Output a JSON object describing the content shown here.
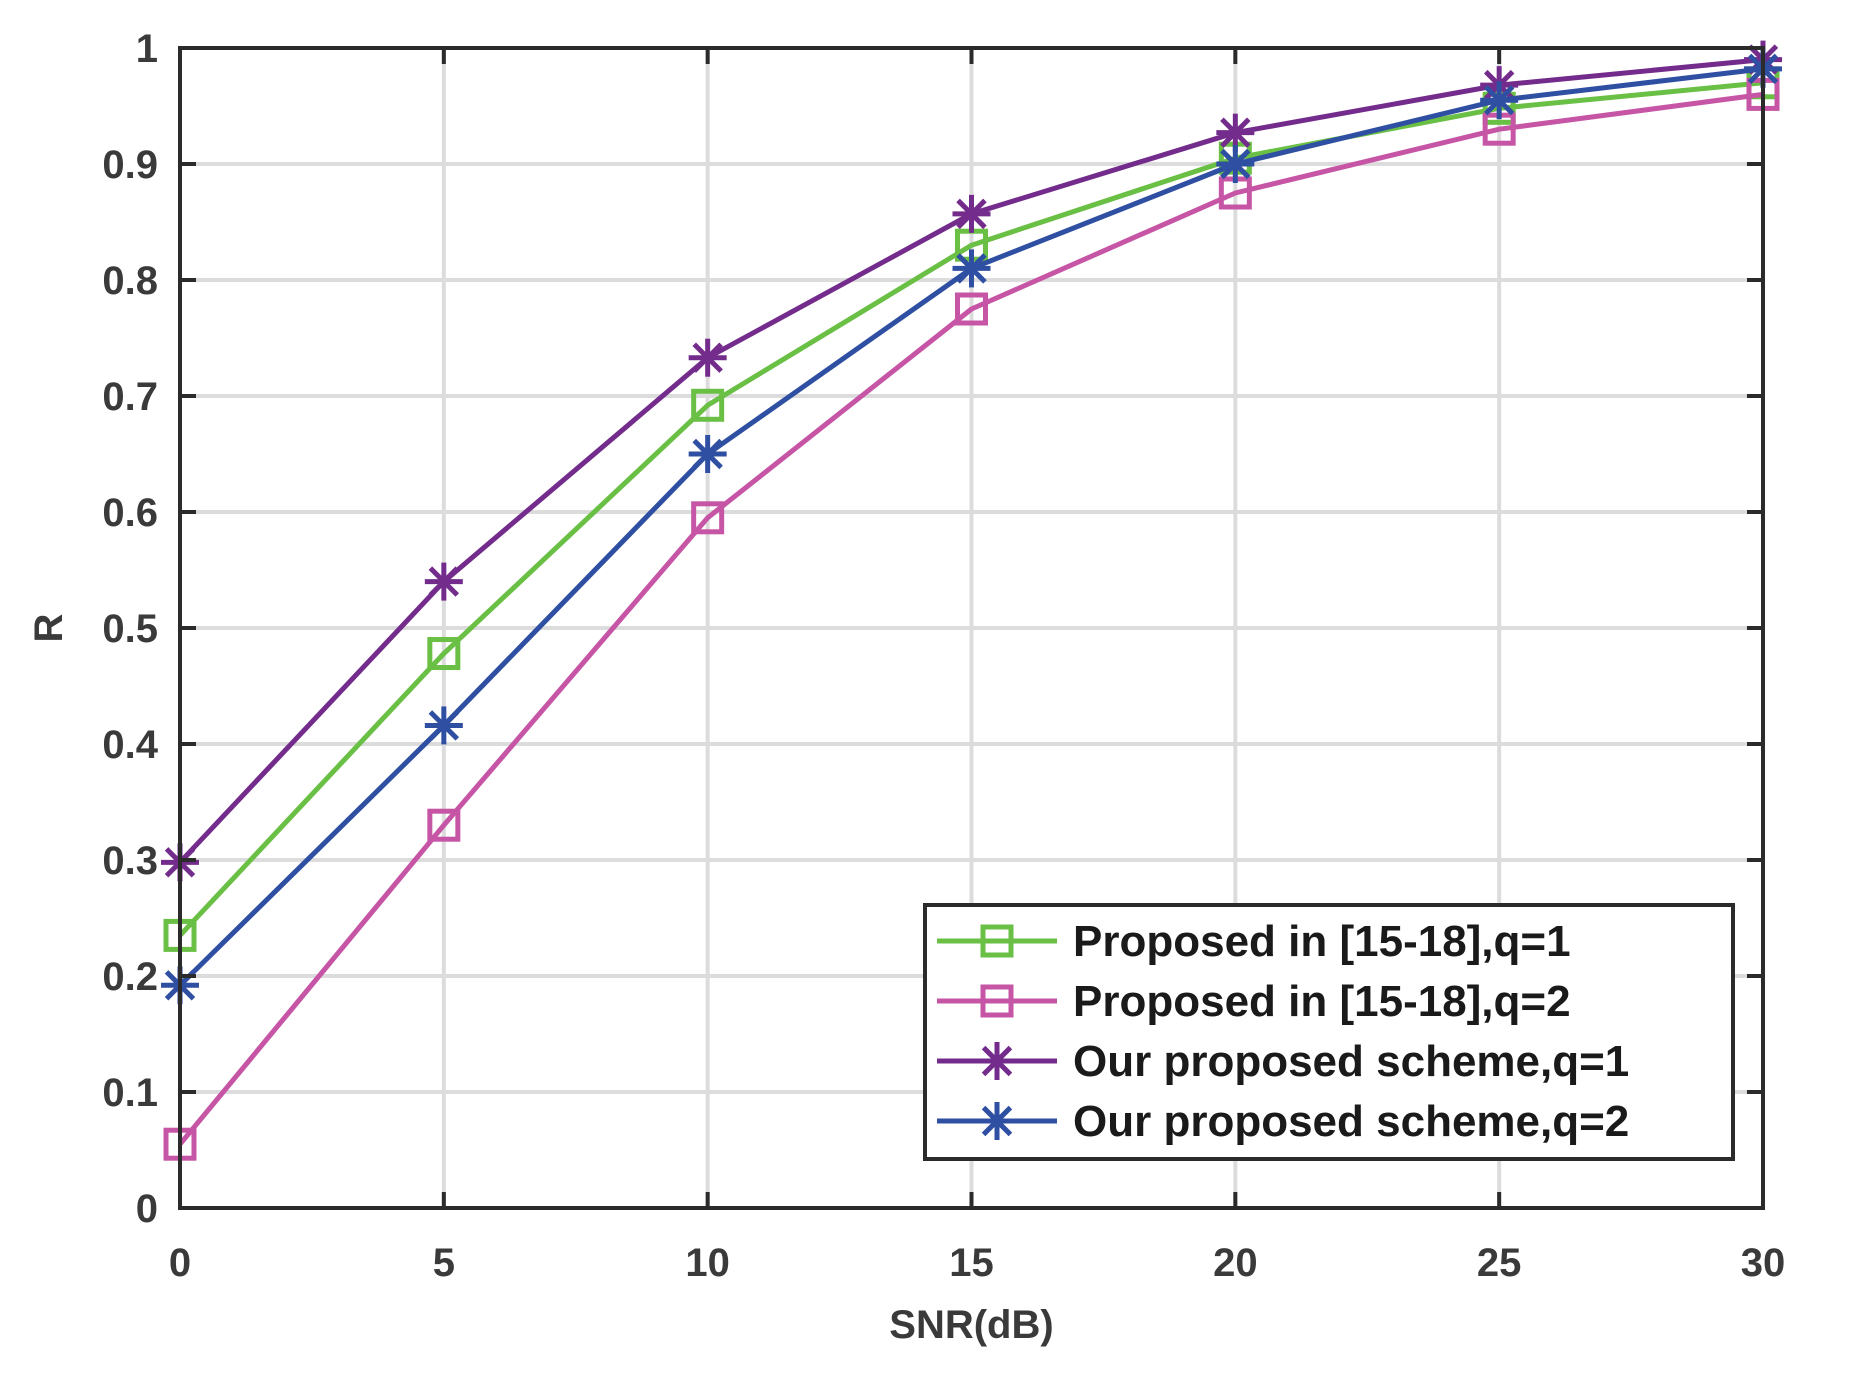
{
  "chart_data": {
    "type": "line",
    "title": "",
    "xlabel": "SNR(dB)",
    "ylabel": "R",
    "xlim": [
      0,
      30
    ],
    "ylim": [
      0,
      1
    ],
    "xticks": [
      0,
      5,
      10,
      15,
      20,
      25,
      30
    ],
    "yticks": [
      0,
      0.1,
      0.2,
      0.3,
      0.4,
      0.5,
      0.6,
      0.7,
      0.8,
      0.9,
      1
    ],
    "xtick_labels": [
      "0",
      "5",
      "10",
      "15",
      "20",
      "25",
      "30"
    ],
    "ytick_labels": [
      "0",
      "0.1",
      "0.2",
      "0.3",
      "0.4",
      "0.5",
      "0.6",
      "0.7",
      "0.8",
      "0.9",
      "1"
    ],
    "grid": true,
    "legend_position": "bottom-right",
    "x": [
      0,
      5,
      10,
      15,
      20,
      25,
      30
    ],
    "series": [
      {
        "name": "Proposed in [15-18],q=1",
        "values": [
          0.235,
          0.478,
          0.692,
          0.83,
          0.905,
          0.948,
          0.97
        ],
        "color": "#6abf45",
        "marker": "square"
      },
      {
        "name": "Proposed in [15-18],q=2",
        "values": [
          0.055,
          0.33,
          0.595,
          0.775,
          0.875,
          0.93,
          0.96
        ],
        "color": "#c655a6",
        "marker": "square"
      },
      {
        "name": "Our proposed scheme,q=1",
        "values": [
          0.298,
          0.54,
          0.733,
          0.857,
          0.927,
          0.968,
          0.99
        ],
        "color": "#742c8c",
        "marker": "asterisk"
      },
      {
        "name": "Our proposed scheme,q=2",
        "values": [
          0.192,
          0.416,
          0.65,
          0.81,
          0.9,
          0.955,
          0.982
        ],
        "color": "#2f4fa2",
        "marker": "asterisk"
      }
    ]
  }
}
